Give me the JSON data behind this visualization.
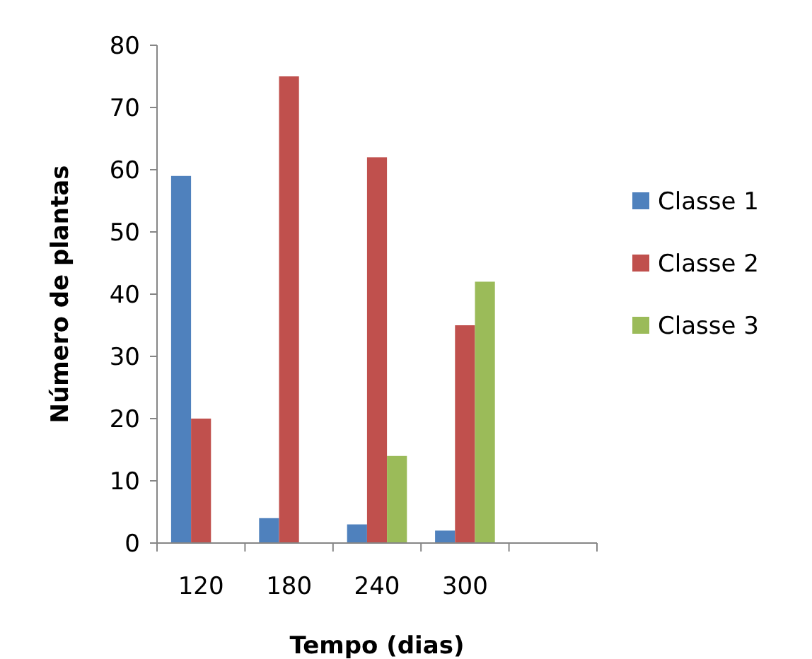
{
  "chart_data": {
    "type": "bar",
    "xlabel": "Tempo (dias)",
    "ylabel": "Número de plantas",
    "categories": [
      "120",
      "180",
      "240",
      "300",
      null
    ],
    "series": [
      {
        "name": "Classe 1",
        "color": "#4f81bd",
        "values": [
          59,
          4,
          3,
          2,
          null
        ]
      },
      {
        "name": "Classe 2",
        "color": "#c0504d",
        "values": [
          20,
          75,
          62,
          35,
          null
        ]
      },
      {
        "name": "Classe 3",
        "color": "#9bbb59",
        "values": [
          null,
          null,
          14,
          42,
          null
        ]
      }
    ],
    "ylim": [
      0,
      80
    ],
    "yticks": [
      0,
      10,
      20,
      30,
      40,
      50,
      60,
      70,
      80
    ],
    "grid": false,
    "legend": "right"
  }
}
